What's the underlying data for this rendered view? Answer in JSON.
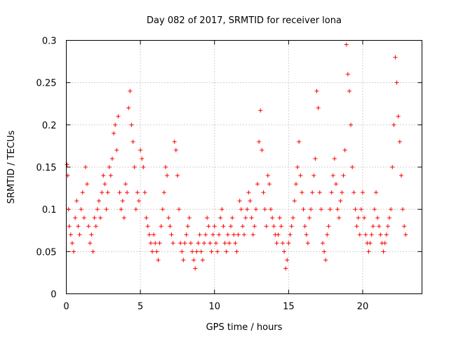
{
  "chart_data": {
    "type": "scatter",
    "title": "Day 082 of 2017, SRMTID for receiver lona",
    "xlabel": "GPS time / hours",
    "ylabel": "SRMTID / TECUs",
    "xlim": [
      0,
      24
    ],
    "ylim": [
      0,
      0.3
    ],
    "x_ticks": [
      0,
      5,
      10,
      15,
      20
    ],
    "x_tick_labels": [
      "0",
      "5",
      "10",
      "15",
      "20"
    ],
    "y_ticks": [
      0,
      0.05,
      0.1,
      0.15,
      0.2,
      0.25,
      0.3
    ],
    "y_tick_labels": [
      "0",
      "0.05",
      "0.1",
      "0.15",
      "0.2",
      "0.25",
      "0.3"
    ],
    "grid": true,
    "marker": "+",
    "series": [
      {
        "name": "SRMTID",
        "color": "#ff0000",
        "x": [
          0.05,
          0.1,
          0.15,
          0.2,
          0.3,
          0.4,
          0.5,
          0.6,
          0.7,
          0.8,
          0.9,
          1.0,
          1.1,
          1.2,
          1.3,
          1.4,
          1.5,
          1.6,
          1.7,
          1.8,
          1.9,
          2.0,
          2.1,
          2.2,
          2.3,
          2.4,
          2.5,
          2.6,
          2.7,
          2.8,
          2.9,
          3.0,
          3.1,
          3.2,
          3.3,
          3.4,
          3.5,
          3.6,
          3.7,
          3.8,
          3.9,
          4.0,
          4.1,
          4.2,
          4.3,
          4.4,
          4.5,
          4.6,
          4.7,
          4.8,
          4.9,
          5.0,
          5.1,
          5.2,
          5.3,
          5.4,
          5.5,
          5.6,
          5.7,
          5.8,
          5.9,
          6.0,
          6.1,
          6.2,
          6.3,
          6.4,
          6.5,
          6.6,
          6.7,
          6.8,
          6.9,
          7.0,
          7.1,
          7.2,
          7.3,
          7.4,
          7.5,
          7.6,
          7.7,
          7.8,
          7.9,
          8.0,
          8.1,
          8.2,
          8.3,
          8.4,
          8.5,
          8.6,
          8.7,
          8.8,
          8.9,
          9.0,
          9.1,
          9.2,
          9.3,
          9.4,
          9.5,
          9.6,
          9.7,
          9.8,
          9.9,
          10.0,
          10.1,
          10.2,
          10.3,
          10.4,
          10.5,
          10.6,
          10.7,
          10.8,
          10.9,
          11.0,
          11.1,
          11.2,
          11.3,
          11.4,
          11.5,
          11.6,
          11.7,
          11.8,
          11.9,
          12.0,
          12.1,
          12.2,
          12.3,
          12.4,
          12.5,
          12.6,
          12.7,
          12.8,
          12.9,
          13.0,
          13.1,
          13.2,
          13.3,
          13.4,
          13.5,
          13.6,
          13.7,
          13.8,
          13.9,
          14.0,
          14.1,
          14.2,
          14.3,
          14.4,
          14.5,
          14.6,
          14.7,
          14.8,
          14.9,
          15.0,
          15.1,
          15.2,
          15.3,
          15.4,
          15.5,
          15.6,
          15.7,
          15.8,
          15.9,
          16.0,
          16.1,
          16.2,
          16.3,
          16.4,
          16.5,
          16.6,
          16.7,
          16.8,
          16.9,
          17.0,
          17.1,
          17.2,
          17.3,
          17.4,
          17.5,
          17.6,
          17.7,
          17.8,
          17.9,
          18.0,
          18.1,
          18.2,
          18.3,
          18.4,
          18.5,
          18.6,
          18.7,
          18.8,
          18.9,
          19.0,
          19.1,
          19.2,
          19.3,
          19.4,
          19.5,
          19.6,
          19.7,
          19.8,
          19.9,
          20.0,
          20.1,
          20.2,
          20.3,
          20.4,
          20.5,
          20.6,
          20.7,
          20.8,
          20.9,
          21.0,
          21.1,
          21.2,
          21.3,
          21.4,
          21.5,
          21.6,
          21.7,
          21.8,
          21.9,
          22.0,
          22.1,
          22.2,
          22.3,
          22.4,
          22.5,
          22.6,
          22.7,
          22.8,
          22.9
        ],
        "y": [
          0.153,
          0.14,
          0.1,
          0.08,
          0.07,
          0.06,
          0.05,
          0.09,
          0.11,
          0.08,
          0.07,
          0.1,
          0.12,
          0.09,
          0.15,
          0.13,
          0.08,
          0.06,
          0.07,
          0.05,
          0.09,
          0.08,
          0.1,
          0.11,
          0.09,
          0.12,
          0.14,
          0.13,
          0.1,
          0.12,
          0.15,
          0.14,
          0.16,
          0.19,
          0.2,
          0.17,
          0.21,
          0.12,
          0.1,
          0.11,
          0.09,
          0.13,
          0.12,
          0.22,
          0.24,
          0.2,
          0.18,
          0.15,
          0.1,
          0.12,
          0.11,
          0.17,
          0.16,
          0.15,
          0.12,
          0.09,
          0.08,
          0.07,
          0.06,
          0.05,
          0.07,
          0.06,
          0.05,
          0.04,
          0.06,
          0.08,
          0.1,
          0.12,
          0.15,
          0.14,
          0.09,
          0.08,
          0.07,
          0.06,
          0.18,
          0.17,
          0.14,
          0.1,
          0.06,
          0.05,
          0.04,
          0.06,
          0.07,
          0.08,
          0.09,
          0.06,
          0.05,
          0.04,
          0.03,
          0.05,
          0.06,
          0.07,
          0.05,
          0.04,
          0.06,
          0.07,
          0.09,
          0.08,
          0.06,
          0.05,
          0.07,
          0.08,
          0.06,
          0.05,
          0.07,
          0.09,
          0.1,
          0.08,
          0.06,
          0.05,
          0.07,
          0.06,
          0.08,
          0.09,
          0.07,
          0.06,
          0.05,
          0.07,
          0.11,
          0.1,
          0.08,
          0.07,
          0.09,
          0.1,
          0.12,
          0.11,
          0.09,
          0.07,
          0.08,
          0.1,
          0.13,
          0.18,
          0.217,
          0.17,
          0.12,
          0.1,
          0.08,
          0.14,
          0.13,
          0.1,
          0.09,
          0.08,
          0.07,
          0.06,
          0.07,
          0.09,
          0.08,
          0.06,
          0.05,
          0.03,
          0.04,
          0.06,
          0.07,
          0.08,
          0.09,
          0.11,
          0.13,
          0.15,
          0.18,
          0.14,
          0.12,
          0.1,
          0.08,
          0.07,
          0.06,
          0.09,
          0.1,
          0.12,
          0.14,
          0.16,
          0.24,
          0.22,
          0.12,
          0.1,
          0.06,
          0.05,
          0.04,
          0.07,
          0.08,
          0.1,
          0.12,
          0.14,
          0.16,
          0.13,
          0.1,
          0.09,
          0.11,
          0.12,
          0.14,
          0.17,
          0.295,
          0.26,
          0.24,
          0.2,
          0.15,
          0.12,
          0.1,
          0.08,
          0.09,
          0.07,
          0.1,
          0.12,
          0.09,
          0.07,
          0.06,
          0.05,
          0.06,
          0.07,
          0.08,
          0.1,
          0.12,
          0.09,
          0.08,
          0.07,
          0.06,
          0.05,
          0.06,
          0.07,
          0.08,
          0.09,
          0.1,
          0.15,
          0.2,
          0.28,
          0.25,
          0.21,
          0.18,
          0.14,
          0.1,
          0.08,
          0.07
        ]
      }
    ]
  }
}
